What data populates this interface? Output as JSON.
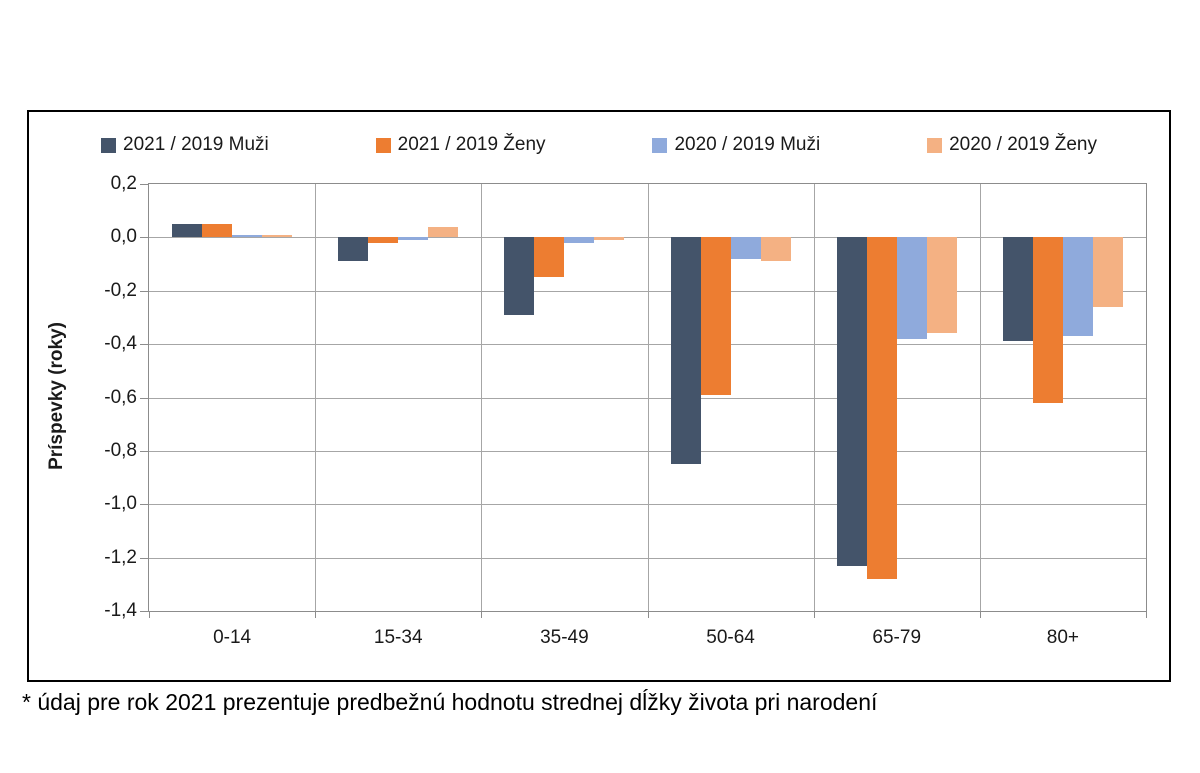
{
  "chart_data": {
    "type": "bar",
    "title": "",
    "xlabel": "",
    "ylabel": "Príspevky (roky)",
    "ylim": [
      -1.4,
      0.2
    ],
    "ytick_step": 0.2,
    "ytick_labels": [
      "0,2",
      "0,0",
      "-0,2",
      "-0,4",
      "-0,6",
      "-0,8",
      "-1,0",
      "-1,2",
      "-1,4"
    ],
    "categories": [
      "0-14",
      "15-34",
      "35-49",
      "50-64",
      "65-79",
      "80+"
    ],
    "series": [
      {
        "name": "2021 / 2019 Muži",
        "color": "#44546A",
        "values": [
          0.05,
          -0.09,
          -0.29,
          -0.85,
          -1.23,
          -0.39
        ]
      },
      {
        "name": "2021 / 2019 Ženy",
        "color": "#ED7D31",
        "values": [
          0.05,
          -0.02,
          -0.15,
          -0.59,
          -1.28,
          -0.62
        ]
      },
      {
        "name": "2020 / 2019 Muži",
        "color": "#8FAADC",
        "values": [
          0.01,
          -0.01,
          -0.02,
          -0.08,
          -0.38,
          -0.37
        ]
      },
      {
        "name": "2020 / 2019 Ženy",
        "color": "#F4B183",
        "values": [
          0.01,
          0.04,
          -0.01,
          -0.09,
          -0.36,
          -0.26
        ]
      }
    ],
    "legend_position": "top",
    "grid": true,
    "gridline_color": "#a6a6a6",
    "axis_color": "#8c8c8c",
    "panel_border_color": "#000000"
  },
  "footnote": "* údaj pre rok 2021 prezentuje predbežnú hodnotu strednej dĺžky života pri narodení"
}
